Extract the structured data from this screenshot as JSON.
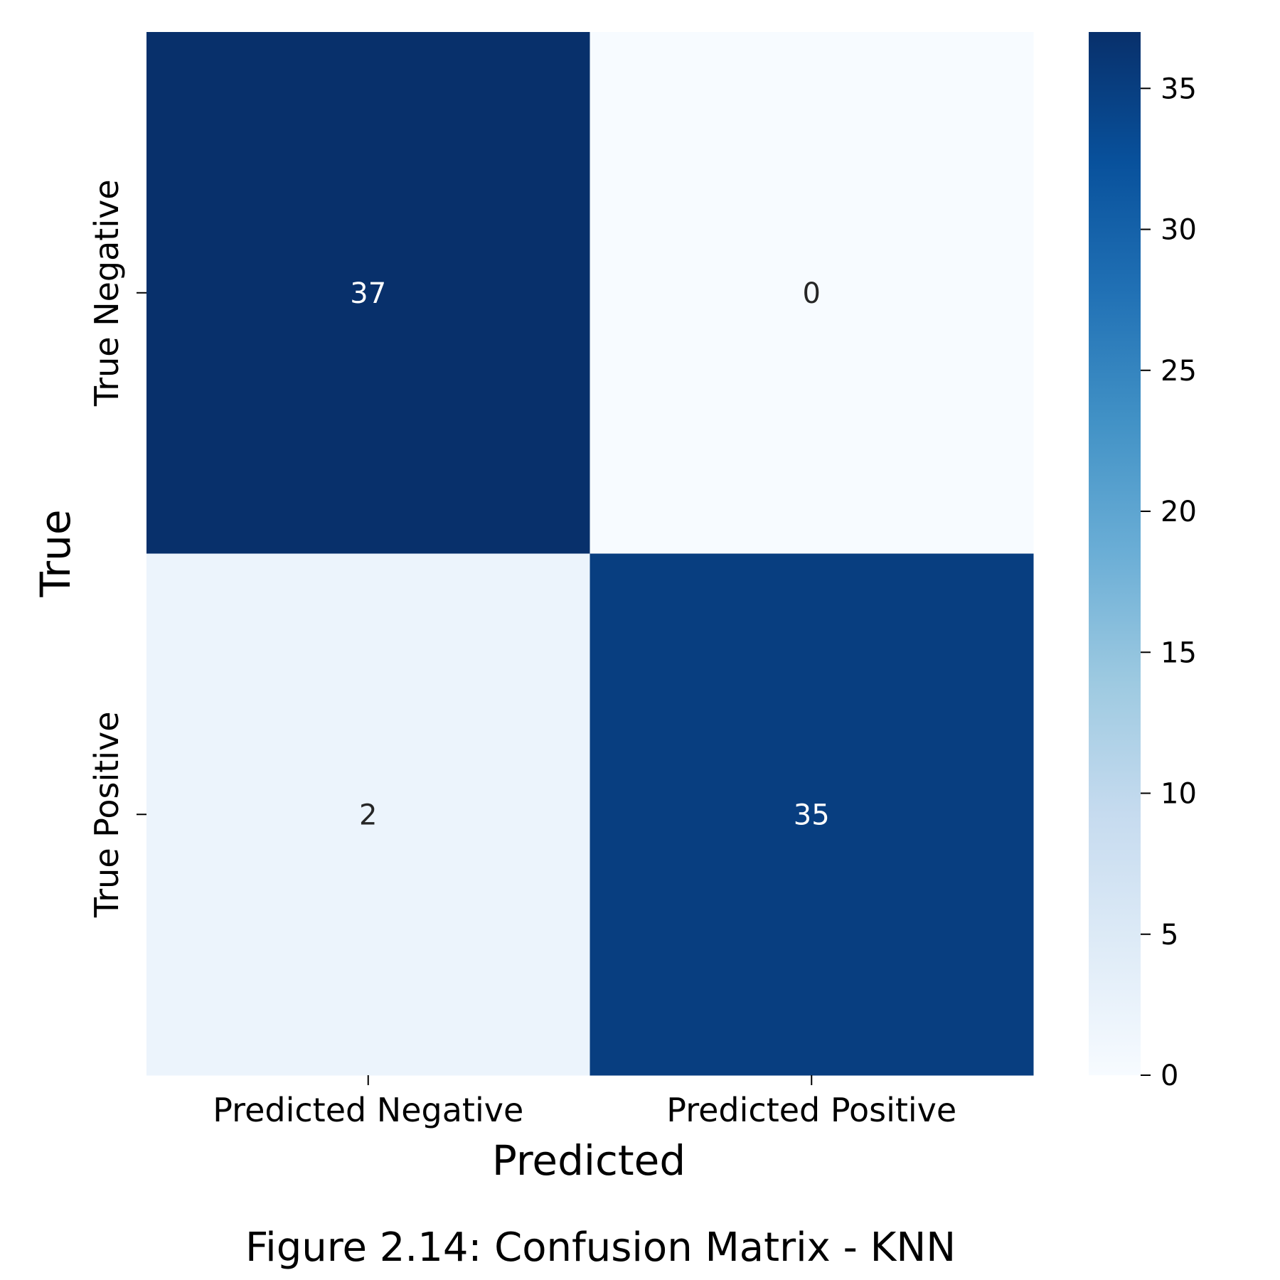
{
  "chart_data": {
    "type": "heatmap",
    "title": "",
    "xlabel": "Predicted",
    "ylabel": "True",
    "x_categories": [
      "Predicted Negative",
      "Predicted Positive"
    ],
    "y_categories": [
      "True Negative",
      "True Positive"
    ],
    "values": [
      [
        37,
        0
      ],
      [
        2,
        35
      ]
    ],
    "colormap": "Blues",
    "colorbar": {
      "range": [
        0,
        37
      ],
      "ticks": [
        0,
        5,
        10,
        15,
        20,
        25,
        30,
        35
      ]
    }
  },
  "caption": "Figure 2.14: Confusion Matrix - KNN"
}
